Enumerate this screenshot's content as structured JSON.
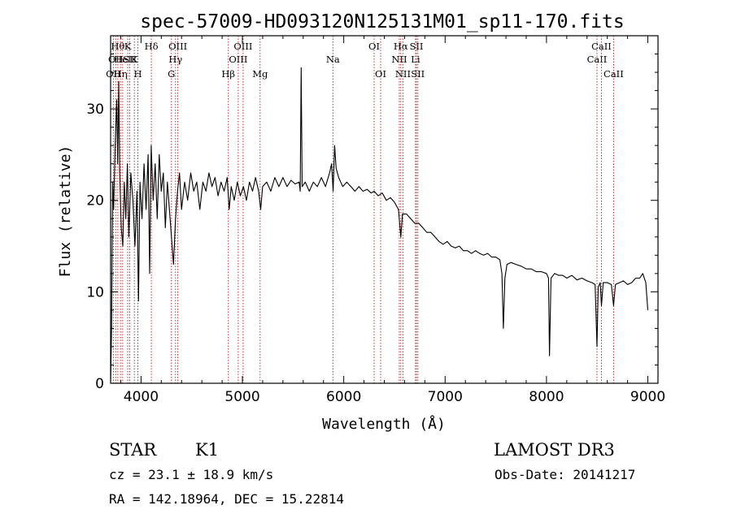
{
  "chart_data": {
    "type": "line",
    "title": "spec-57009-HD093120N125131M01_sp11-170.fits",
    "xlabel": "Wavelength (Å)",
    "ylabel": "Flux (relative)",
    "xlim": [
      3700,
      9100
    ],
    "ylim": [
      0,
      38
    ],
    "xticks": [
      4000,
      5000,
      6000,
      7000,
      8000,
      9000
    ],
    "yticks": [
      0,
      10,
      20,
      30
    ],
    "xtick_labels": [
      "4000",
      "5000",
      "6000",
      "7000",
      "8000",
      "9000"
    ],
    "ytick_labels": [
      "0",
      "10",
      "20",
      "30"
    ],
    "line_color": "#000000",
    "marker_color": "#b22222",
    "series": [
      {
        "name": "flux",
        "points": [
          [
            3700,
            0.2
          ],
          [
            3710,
            6
          ],
          [
            3720,
            22
          ],
          [
            3730,
            19
          ],
          [
            3745,
            26
          ],
          [
            3760,
            31
          ],
          [
            3770,
            24
          ],
          [
            3780,
            33
          ],
          [
            3790,
            23
          ],
          [
            3805,
            17
          ],
          [
            3820,
            15
          ],
          [
            3835,
            22
          ],
          [
            3850,
            18
          ],
          [
            3865,
            24
          ],
          [
            3880,
            16
          ],
          [
            3900,
            23
          ],
          [
            3920,
            20
          ],
          [
            3940,
            15
          ],
          [
            3960,
            21
          ],
          [
            3975,
            9
          ],
          [
            3990,
            22
          ],
          [
            4010,
            18
          ],
          [
            4030,
            24
          ],
          [
            4050,
            19
          ],
          [
            4070,
            25
          ],
          [
            4085,
            12
          ],
          [
            4100,
            26
          ],
          [
            4120,
            20
          ],
          [
            4140,
            24
          ],
          [
            4160,
            18
          ],
          [
            4180,
            25
          ],
          [
            4200,
            21
          ],
          [
            4220,
            23
          ],
          [
            4240,
            17
          ],
          [
            4260,
            22
          ],
          [
            4280,
            19
          ],
          [
            4300,
            16
          ],
          [
            4320,
            13
          ],
          [
            4340,
            18
          ],
          [
            4360,
            21
          ],
          [
            4380,
            23
          ],
          [
            4400,
            19
          ],
          [
            4430,
            22
          ],
          [
            4460,
            20
          ],
          [
            4490,
            23
          ],
          [
            4520,
            21
          ],
          [
            4550,
            22
          ],
          [
            4580,
            19
          ],
          [
            4610,
            22
          ],
          [
            4640,
            21
          ],
          [
            4670,
            23
          ],
          [
            4700,
            21.5
          ],
          [
            4730,
            22.5
          ],
          [
            4760,
            20.5
          ],
          [
            4790,
            22
          ],
          [
            4820,
            21
          ],
          [
            4850,
            22.5
          ],
          [
            4870,
            19
          ],
          [
            4890,
            21.5
          ],
          [
            4920,
            20
          ],
          [
            4950,
            22
          ],
          [
            4980,
            20.5
          ],
          [
            5010,
            21.5
          ],
          [
            5040,
            20
          ],
          [
            5070,
            22
          ],
          [
            5100,
            21
          ],
          [
            5130,
            22.5
          ],
          [
            5160,
            21
          ],
          [
            5180,
            19
          ],
          [
            5200,
            21.5
          ],
          [
            5240,
            22
          ],
          [
            5280,
            21
          ],
          [
            5320,
            22.5
          ],
          [
            5360,
            21.5
          ],
          [
            5400,
            22.5
          ],
          [
            5440,
            21.5
          ],
          [
            5480,
            22.2
          ],
          [
            5520,
            21.8
          ],
          [
            5560,
            22
          ],
          [
            5570,
            21
          ],
          [
            5580,
            34.5
          ],
          [
            5590,
            21.5
          ],
          [
            5620,
            22
          ],
          [
            5660,
            21
          ],
          [
            5700,
            22
          ],
          [
            5740,
            21.5
          ],
          [
            5780,
            22.5
          ],
          [
            5820,
            21.5
          ],
          [
            5860,
            23
          ],
          [
            5880,
            24
          ],
          [
            5895,
            21
          ],
          [
            5910,
            26
          ],
          [
            5925,
            23.5
          ],
          [
            5950,
            22.5
          ],
          [
            5990,
            21.5
          ],
          [
            6030,
            22
          ],
          [
            6070,
            21.5
          ],
          [
            6110,
            21
          ],
          [
            6150,
            21.5
          ],
          [
            6190,
            21
          ],
          [
            6230,
            21.2
          ],
          [
            6270,
            20.8
          ],
          [
            6300,
            21
          ],
          [
            6340,
            20.5
          ],
          [
            6380,
            20.8
          ],
          [
            6420,
            20
          ],
          [
            6460,
            20.3
          ],
          [
            6500,
            19.8
          ],
          [
            6540,
            19
          ],
          [
            6563,
            16
          ],
          [
            6580,
            18.5
          ],
          [
            6620,
            18.5
          ],
          [
            6660,
            18
          ],
          [
            6700,
            17.5
          ],
          [
            6740,
            17.5
          ],
          [
            6780,
            17
          ],
          [
            6820,
            16.5
          ],
          [
            6860,
            16.5
          ],
          [
            6900,
            16
          ],
          [
            6940,
            15.5
          ],
          [
            6980,
            15.2
          ],
          [
            7020,
            15.5
          ],
          [
            7060,
            15
          ],
          [
            7100,
            14.8
          ],
          [
            7140,
            15
          ],
          [
            7180,
            14.5
          ],
          [
            7220,
            14.5
          ],
          [
            7260,
            14.2
          ],
          [
            7300,
            14.5
          ],
          [
            7340,
            14.2
          ],
          [
            7380,
            14
          ],
          [
            7420,
            14.2
          ],
          [
            7460,
            13.8
          ],
          [
            7500,
            13.8
          ],
          [
            7540,
            13.5
          ],
          [
            7560,
            12
          ],
          [
            7575,
            6
          ],
          [
            7590,
            11.5
          ],
          [
            7610,
            13
          ],
          [
            7650,
            13.2
          ],
          [
            7700,
            13
          ],
          [
            7750,
            12.8
          ],
          [
            7800,
            12.5
          ],
          [
            7850,
            12.5
          ],
          [
            7900,
            12.2
          ],
          [
            7950,
            12.2
          ],
          [
            8000,
            12
          ],
          [
            8020,
            11.5
          ],
          [
            8030,
            3
          ],
          [
            8045,
            11.5
          ],
          [
            8080,
            12
          ],
          [
            8120,
            11.8
          ],
          [
            8160,
            11.8
          ],
          [
            8200,
            11.5
          ],
          [
            8250,
            11.8
          ],
          [
            8300,
            11.3
          ],
          [
            8350,
            11.5
          ],
          [
            8400,
            11.2
          ],
          [
            8450,
            11
          ],
          [
            8480,
            10.8
          ],
          [
            8498,
            4
          ],
          [
            8510,
            10.5
          ],
          [
            8530,
            11
          ],
          [
            8542,
            8.5
          ],
          [
            8560,
            11
          ],
          [
            8600,
            11
          ],
          [
            8640,
            10.8
          ],
          [
            8662,
            8.5
          ],
          [
            8680,
            10.8
          ],
          [
            8720,
            11
          ],
          [
            8760,
            11.2
          ],
          [
            8800,
            10.8
          ],
          [
            8840,
            11
          ],
          [
            8880,
            11.5
          ],
          [
            8920,
            11.5
          ],
          [
            8950,
            12
          ],
          [
            8980,
            11
          ],
          [
            9000,
            8
          ]
        ]
      }
    ],
    "line_markers": [
      {
        "wavelength": 3727,
        "label": "OII",
        "row": 2
      },
      {
        "wavelength": 3750,
        "label": "OII",
        "row": 1
      },
      {
        "wavelength": 3771,
        "label": "Hθ",
        "row": 0
      },
      {
        "wavelength": 3798,
        "label": "Hη",
        "row": 2
      },
      {
        "wavelength": 3819,
        "label": "HeI",
        "row": 1
      },
      {
        "wavelength": 3869,
        "label": "K",
        "row": 0
      },
      {
        "wavelength": 3889,
        "label": "SII",
        "row": 1
      },
      {
        "wavelength": 3934,
        "label": "K",
        "row": 1
      },
      {
        "wavelength": 3969,
        "label": "H",
        "row": 2
      },
      {
        "wavelength": 4102,
        "label": "Hδ",
        "row": 0
      },
      {
        "wavelength": 4300,
        "label": "G",
        "row": 2
      },
      {
        "wavelength": 4340,
        "label": "Hγ",
        "row": 1
      },
      {
        "wavelength": 4363,
        "label": "OIII",
        "row": 0
      },
      {
        "wavelength": 4861,
        "label": "Hβ",
        "row": 2
      },
      {
        "wavelength": 4959,
        "label": "OIII",
        "row": 1
      },
      {
        "wavelength": 5007,
        "label": "OIII",
        "row": 0
      },
      {
        "wavelength": 5175,
        "label": "Mg",
        "row": 2
      },
      {
        "wavelength": 5893,
        "label": "Na",
        "row": 1
      },
      {
        "wavelength": 6300,
        "label": "OI",
        "row": 0
      },
      {
        "wavelength": 6364,
        "label": "OI",
        "row": 2
      },
      {
        "wavelength": 6548,
        "label": "NII",
        "row": 1
      },
      {
        "wavelength": 6563,
        "label": "Hα",
        "row": 0
      },
      {
        "wavelength": 6584,
        "label": "NII",
        "row": 2
      },
      {
        "wavelength": 6708,
        "label": "Li",
        "row": 1
      },
      {
        "wavelength": 6717,
        "label": "SII",
        "row": 0
      },
      {
        "wavelength": 6731,
        "label": "SII",
        "row": 2
      },
      {
        "wavelength": 8498,
        "label": "CaII",
        "row": 1
      },
      {
        "wavelength": 8542,
        "label": "CaII",
        "row": 0
      },
      {
        "wavelength": 8662,
        "label": "CaII",
        "row": 2
      }
    ]
  },
  "info": {
    "object_class": "STAR",
    "subclass": "K1",
    "survey": "LAMOST DR3",
    "redshift": "cz = 23.1 ± 18.9 km/s",
    "obs_date": "Obs-Date: 20141217",
    "coordinates": "RA = 142.18964, DEC =  15.22814"
  }
}
